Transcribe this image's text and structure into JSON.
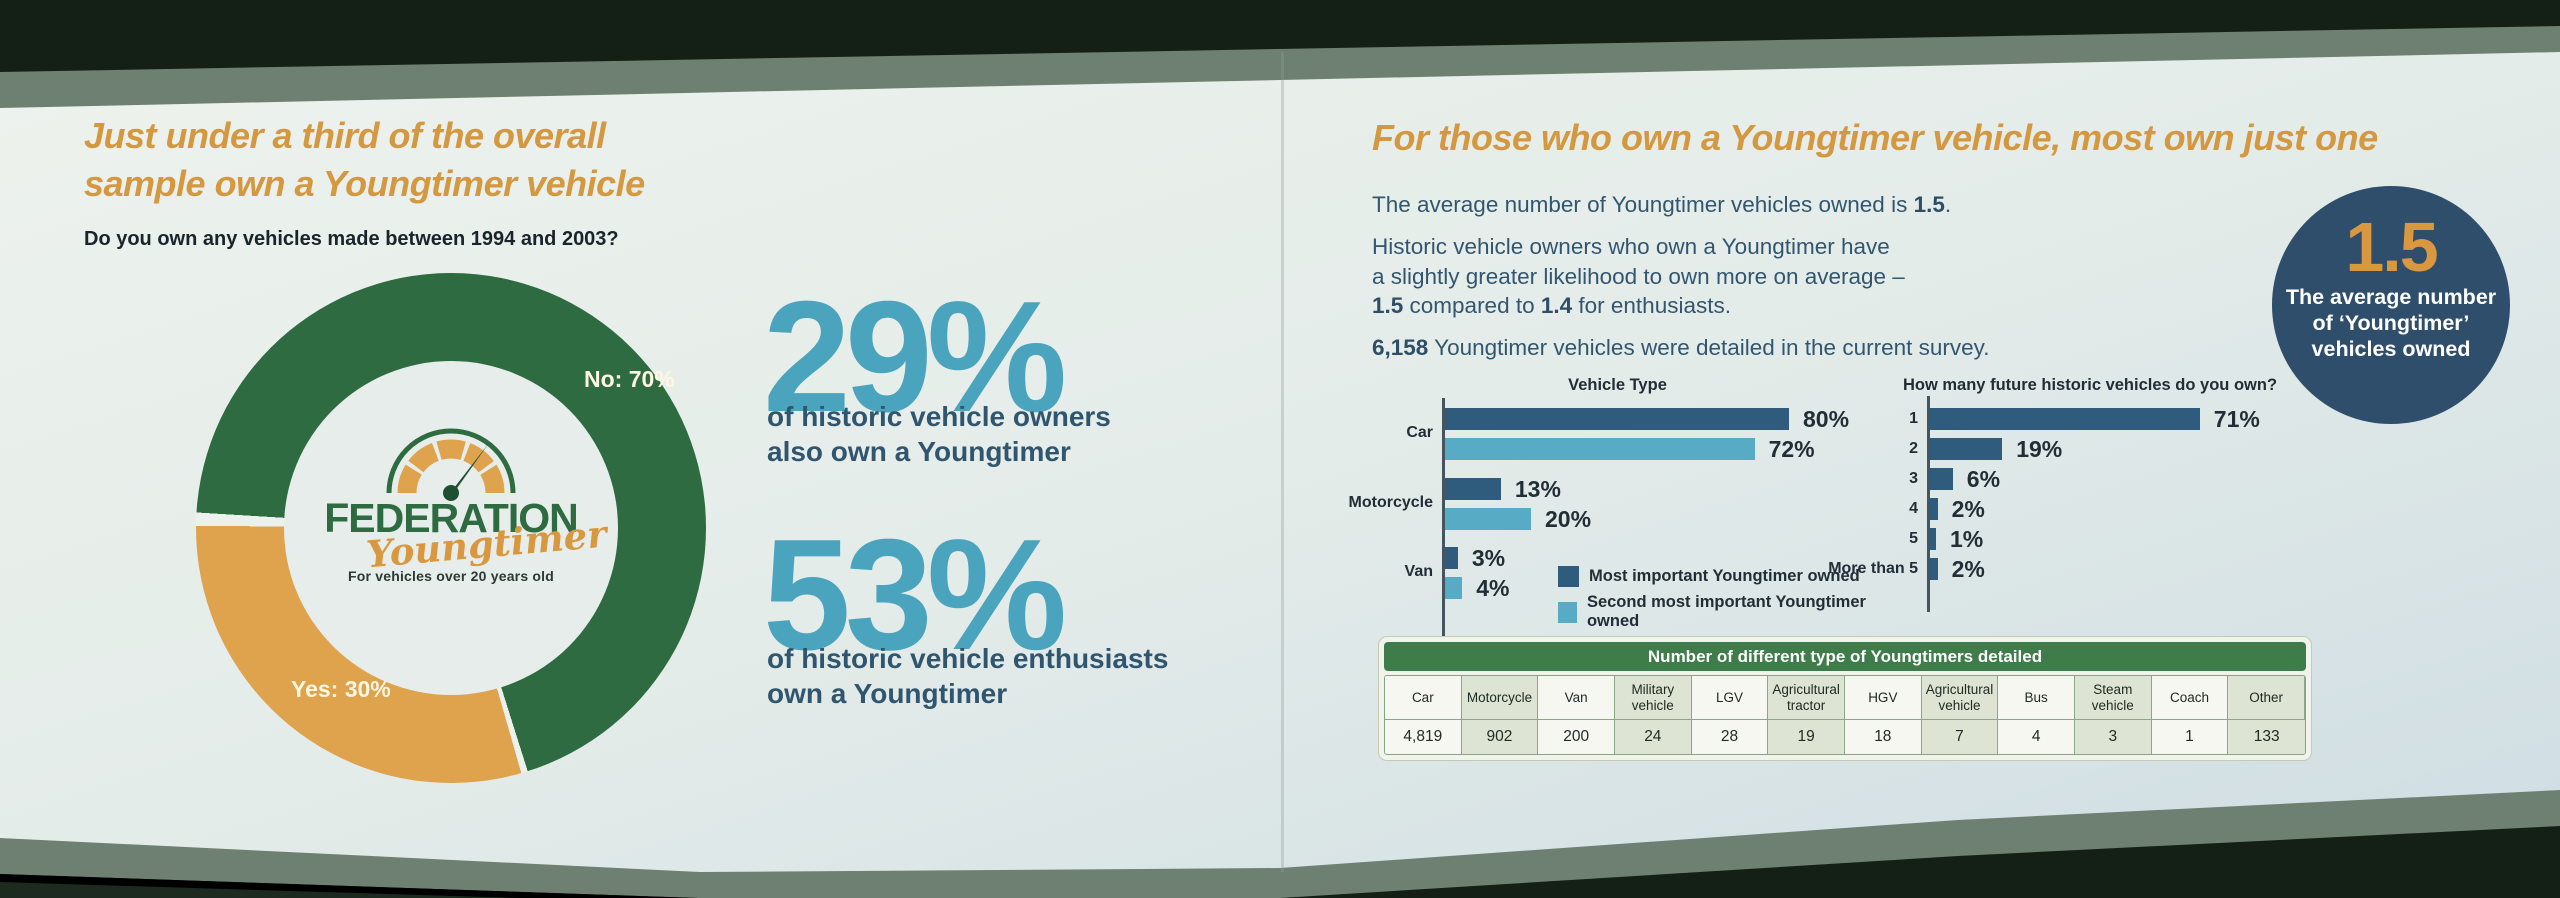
{
  "left_page": {
    "headline": "Just under a third of the overall\nsample own a Youngtimer vehicle",
    "question": "Do you own any vehicles made between 1994 and 2003?",
    "donut_labels": {
      "no": "No: 70%",
      "yes": "Yes: 30%"
    },
    "logo": {
      "name": "FEDERATION",
      "script": "Youngtimer",
      "tagline": "For vehicles   over 20 years old"
    },
    "stats": [
      {
        "value": "29%",
        "caption": "of historic vehicle owners\nalso own a Youngtimer"
      },
      {
        "value": "53%",
        "caption": "of historic vehicle enthusiasts\nown a Youngtimer"
      }
    ]
  },
  "right_page": {
    "headline": "For those who own a Youngtimer vehicle, most own just one",
    "paragraphs": [
      {
        "segments": [
          {
            "text": "The average number of Youngtimer vehicles owned is "
          },
          {
            "text": "1.5",
            "bold": true
          },
          {
            "text": "."
          }
        ]
      },
      {
        "segments": [
          {
            "text": "Historic vehicle owners who own a Youngtimer have\na slightly greater likelihood to own more on average –\n"
          },
          {
            "text": "1.5",
            "bold": true
          },
          {
            "text": " compared to "
          },
          {
            "text": "1.4",
            "bold": true
          },
          {
            "text": " for enthusiasts."
          }
        ]
      },
      {
        "segments": [
          {
            "text": "6,158",
            "bold": true
          },
          {
            "text": " Youngtimer vehicles were detailed in the current survey."
          }
        ]
      }
    ],
    "badge": {
      "value": "1.5",
      "caption": "The average number\nof ‘Youngtimer’\nvehicles owned"
    }
  },
  "colors": {
    "accent_orange": "#d49841",
    "navy_text": "#33566f",
    "teal_stat": "#4ba4bd",
    "donut_yes_orange": "#dfa24d",
    "donut_no_green": "#2f6b41",
    "bar_dark_blue": "#2f5b7d",
    "bar_light_blue": "#58abc4",
    "badge_navy": "#2f4e6c",
    "table_header_green": "#3e7c49",
    "frame_dark_green": "#141f16",
    "frame_sage": "#6e8071"
  },
  "chart_data": [
    {
      "type": "pie",
      "style": "donut",
      "title": "Do you own any vehicles made between 1994 and 2003?",
      "labels": [
        "Yes: 30%",
        "No: 70%"
      ],
      "values": [
        30,
        70
      ],
      "colors": [
        "#dfa24d",
        "#2f6b41"
      ],
      "start_angle_deg": 164
    },
    {
      "type": "bar",
      "orientation": "horizontal",
      "title": "Vehicle Type",
      "categories": [
        "Car",
        "Motorcycle",
        "Van"
      ],
      "series": [
        {
          "name": "Most important Youngtimer owned",
          "color": "#2f5b7d",
          "values": [
            80,
            13,
            3
          ]
        },
        {
          "name": "Second most important Youngtimer owned",
          "color": "#58abc4",
          "values": [
            72,
            20,
            4
          ]
        }
      ],
      "value_suffix": "%",
      "xlim": [
        0,
        100
      ],
      "grid": false,
      "legend_position": "bottom-right-inside"
    },
    {
      "type": "bar",
      "orientation": "horizontal",
      "title": "How many future historic vehicles do you own?",
      "categories": [
        "1",
        "2",
        "3",
        "4",
        "5",
        "More than 5"
      ],
      "values": [
        71,
        19,
        6,
        2,
        1,
        2
      ],
      "color": "#2f5b7d",
      "value_suffix": "%",
      "xlim": [
        0,
        100
      ],
      "grid": false
    },
    {
      "type": "table",
      "title": "Number of different type of Youngtimers detailed",
      "columns": [
        "Car",
        "Motorcycle",
        "Van",
        "Military vehicle",
        "LGV",
        "Agricultural tractor",
        "HGV",
        "Agricultural vehicle",
        "Bus",
        "Steam vehicle",
        "Coach",
        "Other"
      ],
      "values": [
        "4,819",
        "902",
        "200",
        "24",
        "28",
        "19",
        "18",
        "7",
        "4",
        "3",
        "1",
        "133"
      ]
    }
  ]
}
